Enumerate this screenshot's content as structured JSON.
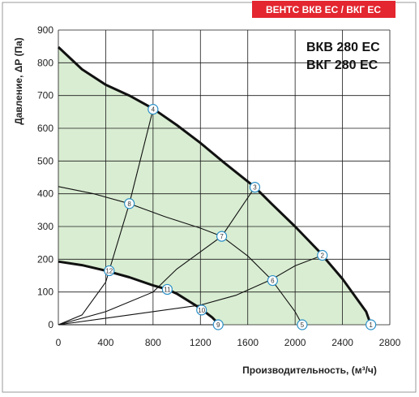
{
  "header": {
    "badge": "ВЕНТС ВКВ ЕС / ВКГ ЕС"
  },
  "models": [
    "ВКВ 280 ЕС",
    "ВКГ 280 ЕС"
  ],
  "colors": {
    "badge": "#e3262f",
    "fill": "#d9edd2",
    "grid": "#1a1a1a",
    "curve": "#111111",
    "marker_stroke": "#2a8fc6",
    "frame": "#999999"
  },
  "chart_data": {
    "type": "line",
    "xlabel": "Производительность, (м³/ч)",
    "ylabel": "Давление, ΔP (Па)",
    "xlim": [
      0,
      2800
    ],
    "ylim": [
      0,
      900
    ],
    "x_ticks": [
      0,
      400,
      800,
      1200,
      1600,
      2000,
      2400,
      2800
    ],
    "y_ticks": [
      0,
      100,
      200,
      300,
      400,
      500,
      600,
      700,
      800,
      900
    ],
    "grid": true,
    "shaded_region": "between max and min curves",
    "fan_curves": [
      {
        "name": "max",
        "points": [
          [
            0,
            848
          ],
          [
            200,
            780
          ],
          [
            400,
            733
          ],
          [
            600,
            700
          ],
          [
            800,
            660
          ],
          [
            1000,
            610
          ],
          [
            1200,
            555
          ],
          [
            1400,
            495
          ],
          [
            1660,
            420
          ],
          [
            1800,
            370
          ],
          [
            2000,
            300
          ],
          [
            2200,
            225
          ],
          [
            2400,
            140
          ],
          [
            2600,
            40
          ],
          [
            2640,
            0
          ]
        ]
      },
      {
        "name": "min",
        "points": [
          [
            0,
            193
          ],
          [
            200,
            182
          ],
          [
            400,
            165
          ],
          [
            600,
            145
          ],
          [
            800,
            120
          ],
          [
            920,
            108
          ],
          [
            1000,
            95
          ],
          [
            1200,
            50
          ],
          [
            1300,
            22
          ],
          [
            1360,
            0
          ]
        ]
      }
    ],
    "system_curves": [
      {
        "name": "A",
        "points": [
          [
            0,
            0
          ],
          [
            200,
            30
          ],
          [
            400,
            130
          ],
          [
            600,
            370
          ],
          [
            800,
            658
          ]
        ]
      },
      {
        "name": "B",
        "points": [
          [
            0,
            0
          ],
          [
            400,
            40
          ],
          [
            800,
            100
          ],
          [
            1000,
            170
          ],
          [
            1380,
            270
          ],
          [
            1660,
            420
          ]
        ]
      },
      {
        "name": "C",
        "points": [
          [
            0,
            0
          ],
          [
            600,
            30
          ],
          [
            1200,
            60
          ],
          [
            1500,
            90
          ],
          [
            1800,
            138
          ],
          [
            2000,
            180
          ],
          [
            2230,
            212
          ]
        ]
      },
      {
        "name": "D",
        "points": [
          [
            0,
            422
          ],
          [
            300,
            400
          ],
          [
            600,
            370
          ],
          [
            900,
            330
          ],
          [
            1200,
            295
          ],
          [
            1380,
            270
          ],
          [
            1600,
            210
          ],
          [
            1800,
            138
          ],
          [
            2000,
            40
          ],
          [
            2060,
            0
          ]
        ]
      },
      {
        "name": "E",
        "points": [
          [
            0,
            0
          ],
          [
            1350,
            0
          ]
        ]
      }
    ],
    "points": [
      {
        "id": "1",
        "x": 2640,
        "y": 0
      },
      {
        "id": "2",
        "x": 2230,
        "y": 212
      },
      {
        "id": "3",
        "x": 1660,
        "y": 420
      },
      {
        "id": "4",
        "x": 800,
        "y": 658
      },
      {
        "id": "5",
        "x": 2060,
        "y": 0
      },
      {
        "id": "6",
        "x": 1810,
        "y": 135
      },
      {
        "id": "7",
        "x": 1380,
        "y": 270
      },
      {
        "id": "8",
        "x": 600,
        "y": 370
      },
      {
        "id": "9",
        "x": 1350,
        "y": 0
      },
      {
        "id": "10",
        "x": 1210,
        "y": 45
      },
      {
        "id": "11",
        "x": 920,
        "y": 108
      },
      {
        "id": "12",
        "x": 430,
        "y": 165
      }
    ]
  }
}
